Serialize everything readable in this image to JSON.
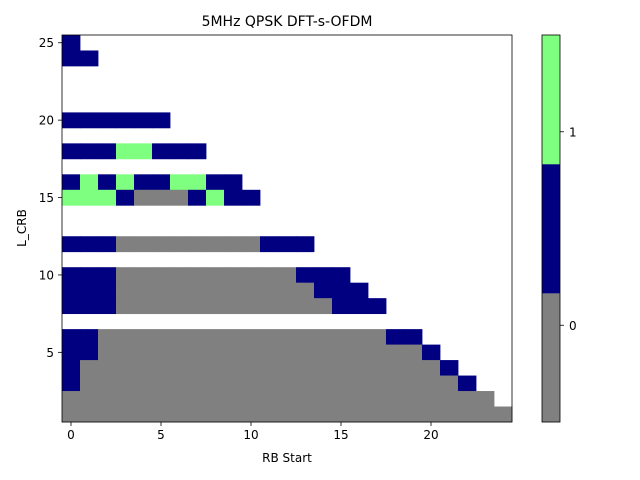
{
  "chart_data": {
    "type": "heatmap",
    "title": "5MHz QPSK DFT-s-OFDM",
    "xlabel": "RB Start",
    "ylabel": "L_CRB",
    "xlim": [
      -0.5,
      24.5
    ],
    "ylim": [
      0.5,
      25.5
    ],
    "x_ticks": [
      0,
      5,
      10,
      15,
      20
    ],
    "y_ticks": [
      5,
      10,
      15,
      20,
      25
    ],
    "colorbar": {
      "ticks": [
        {
          "value": 0,
          "label": "0"
        },
        {
          "value": 1,
          "label": "1"
        }
      ],
      "levels": [
        {
          "name": "gray",
          "color": "#808080"
        },
        {
          "name": "navy",
          "color": "#000080"
        },
        {
          "name": "light-green",
          "color": "#7fff7f"
        }
      ]
    },
    "colors": {
      "0": "#808080",
      "1": "#000080",
      "2": "#7fff7f"
    },
    "legend": "0 = gray, 1 = navy, 2 = light green",
    "rows": [
      {
        "L": 25,
        "cells": [
          [
            0,
            1
          ]
        ]
      },
      {
        "L": 24,
        "cells": [
          [
            0,
            1
          ],
          [
            1,
            1
          ]
        ]
      },
      {
        "L": 20,
        "cells": [
          [
            0,
            1
          ],
          [
            1,
            1
          ],
          [
            2,
            1
          ],
          [
            3,
            1
          ],
          [
            4,
            1
          ],
          [
            5,
            1
          ]
        ]
      },
      {
        "L": 18,
        "cells": [
          [
            0,
            1
          ],
          [
            1,
            1
          ],
          [
            2,
            1
          ],
          [
            3,
            2
          ],
          [
            4,
            2
          ],
          [
            5,
            1
          ],
          [
            6,
            1
          ],
          [
            7,
            1
          ]
        ]
      },
      {
        "L": 16,
        "cells": [
          [
            0,
            1
          ],
          [
            1,
            2
          ],
          [
            2,
            1
          ],
          [
            3,
            2
          ],
          [
            4,
            1
          ],
          [
            5,
            1
          ],
          [
            6,
            2
          ],
          [
            7,
            2
          ],
          [
            8,
            1
          ],
          [
            9,
            1
          ]
        ]
      },
      {
        "L": 15,
        "cells": [
          [
            0,
            2
          ],
          [
            1,
            2
          ],
          [
            2,
            2
          ],
          [
            3,
            1
          ],
          [
            4,
            0
          ],
          [
            5,
            0
          ],
          [
            6,
            0
          ],
          [
            7,
            1
          ],
          [
            8,
            2
          ],
          [
            9,
            1
          ],
          [
            10,
            1
          ]
        ]
      },
      {
        "L": 12,
        "cells": [
          [
            0,
            1
          ],
          [
            1,
            1
          ],
          [
            2,
            1
          ],
          [
            3,
            0
          ],
          [
            4,
            0
          ],
          [
            5,
            0
          ],
          [
            6,
            0
          ],
          [
            7,
            0
          ],
          [
            8,
            0
          ],
          [
            9,
            0
          ],
          [
            10,
            0
          ],
          [
            11,
            1
          ],
          [
            12,
            1
          ],
          [
            13,
            1
          ]
        ]
      },
      {
        "L": 10,
        "cells": [
          [
            0,
            1
          ],
          [
            1,
            1
          ],
          [
            2,
            1
          ],
          [
            3,
            0
          ],
          [
            4,
            0
          ],
          [
            5,
            0
          ],
          [
            6,
            0
          ],
          [
            7,
            0
          ],
          [
            8,
            0
          ],
          [
            9,
            0
          ],
          [
            10,
            0
          ],
          [
            11,
            0
          ],
          [
            12,
            0
          ],
          [
            13,
            1
          ],
          [
            14,
            1
          ],
          [
            15,
            1
          ]
        ]
      },
      {
        "L": 9,
        "cells": [
          [
            0,
            1
          ],
          [
            1,
            1
          ],
          [
            2,
            1
          ],
          [
            3,
            0
          ],
          [
            4,
            0
          ],
          [
            5,
            0
          ],
          [
            6,
            0
          ],
          [
            7,
            0
          ],
          [
            8,
            0
          ],
          [
            9,
            0
          ],
          [
            10,
            0
          ],
          [
            11,
            0
          ],
          [
            12,
            0
          ],
          [
            13,
            0
          ],
          [
            14,
            1
          ],
          [
            15,
            1
          ],
          [
            16,
            1
          ]
        ]
      },
      {
        "L": 8,
        "cells": [
          [
            0,
            1
          ],
          [
            1,
            1
          ],
          [
            2,
            1
          ],
          [
            3,
            0
          ],
          [
            4,
            0
          ],
          [
            5,
            0
          ],
          [
            6,
            0
          ],
          [
            7,
            0
          ],
          [
            8,
            0
          ],
          [
            9,
            0
          ],
          [
            10,
            0
          ],
          [
            11,
            0
          ],
          [
            12,
            0
          ],
          [
            13,
            0
          ],
          [
            14,
            0
          ],
          [
            15,
            1
          ],
          [
            16,
            1
          ],
          [
            17,
            1
          ]
        ]
      },
      {
        "L": 6,
        "cells": [
          [
            0,
            1
          ],
          [
            1,
            1
          ],
          [
            2,
            0
          ],
          [
            3,
            0
          ],
          [
            4,
            0
          ],
          [
            5,
            0
          ],
          [
            6,
            0
          ],
          [
            7,
            0
          ],
          [
            8,
            0
          ],
          [
            9,
            0
          ],
          [
            10,
            0
          ],
          [
            11,
            0
          ],
          [
            12,
            0
          ],
          [
            13,
            0
          ],
          [
            14,
            0
          ],
          [
            15,
            0
          ],
          [
            16,
            0
          ],
          [
            17,
            0
          ],
          [
            18,
            1
          ],
          [
            19,
            1
          ]
        ]
      },
      {
        "L": 5,
        "cells": [
          [
            0,
            1
          ],
          [
            1,
            1
          ],
          [
            2,
            0
          ],
          [
            3,
            0
          ],
          [
            4,
            0
          ],
          [
            5,
            0
          ],
          [
            6,
            0
          ],
          [
            7,
            0
          ],
          [
            8,
            0
          ],
          [
            9,
            0
          ],
          [
            10,
            0
          ],
          [
            11,
            0
          ],
          [
            12,
            0
          ],
          [
            13,
            0
          ],
          [
            14,
            0
          ],
          [
            15,
            0
          ],
          [
            16,
            0
          ],
          [
            17,
            0
          ],
          [
            18,
            0
          ],
          [
            19,
            0
          ],
          [
            20,
            1
          ]
        ]
      },
      {
        "L": 4,
        "cells": [
          [
            0,
            1
          ],
          [
            1,
            0
          ],
          [
            2,
            0
          ],
          [
            3,
            0
          ],
          [
            4,
            0
          ],
          [
            5,
            0
          ],
          [
            6,
            0
          ],
          [
            7,
            0
          ],
          [
            8,
            0
          ],
          [
            9,
            0
          ],
          [
            10,
            0
          ],
          [
            11,
            0
          ],
          [
            12,
            0
          ],
          [
            13,
            0
          ],
          [
            14,
            0
          ],
          [
            15,
            0
          ],
          [
            16,
            0
          ],
          [
            17,
            0
          ],
          [
            18,
            0
          ],
          [
            19,
            0
          ],
          [
            20,
            0
          ],
          [
            21,
            1
          ]
        ]
      },
      {
        "L": 3,
        "cells": [
          [
            0,
            1
          ],
          [
            1,
            0
          ],
          [
            2,
            0
          ],
          [
            3,
            0
          ],
          [
            4,
            0
          ],
          [
            5,
            0
          ],
          [
            6,
            0
          ],
          [
            7,
            0
          ],
          [
            8,
            0
          ],
          [
            9,
            0
          ],
          [
            10,
            0
          ],
          [
            11,
            0
          ],
          [
            12,
            0
          ],
          [
            13,
            0
          ],
          [
            14,
            0
          ],
          [
            15,
            0
          ],
          [
            16,
            0
          ],
          [
            17,
            0
          ],
          [
            18,
            0
          ],
          [
            19,
            0
          ],
          [
            20,
            0
          ],
          [
            21,
            0
          ],
          [
            22,
            1
          ]
        ]
      },
      {
        "L": 2,
        "cells": [
          [
            0,
            0
          ],
          [
            1,
            0
          ],
          [
            2,
            0
          ],
          [
            3,
            0
          ],
          [
            4,
            0
          ],
          [
            5,
            0
          ],
          [
            6,
            0
          ],
          [
            7,
            0
          ],
          [
            8,
            0
          ],
          [
            9,
            0
          ],
          [
            10,
            0
          ],
          [
            11,
            0
          ],
          [
            12,
            0
          ],
          [
            13,
            0
          ],
          [
            14,
            0
          ],
          [
            15,
            0
          ],
          [
            16,
            0
          ],
          [
            17,
            0
          ],
          [
            18,
            0
          ],
          [
            19,
            0
          ],
          [
            20,
            0
          ],
          [
            21,
            0
          ],
          [
            22,
            0
          ],
          [
            23,
            0
          ]
        ]
      },
      {
        "L": 1,
        "cells": [
          [
            0,
            0
          ],
          [
            1,
            0
          ],
          [
            2,
            0
          ],
          [
            3,
            0
          ],
          [
            4,
            0
          ],
          [
            5,
            0
          ],
          [
            6,
            0
          ],
          [
            7,
            0
          ],
          [
            8,
            0
          ],
          [
            9,
            0
          ],
          [
            10,
            0
          ],
          [
            11,
            0
          ],
          [
            12,
            0
          ],
          [
            13,
            0
          ],
          [
            14,
            0
          ],
          [
            15,
            0
          ],
          [
            16,
            0
          ],
          [
            17,
            0
          ],
          [
            18,
            0
          ],
          [
            19,
            0
          ],
          [
            20,
            0
          ],
          [
            21,
            0
          ],
          [
            22,
            0
          ],
          [
            23,
            0
          ],
          [
            24,
            0
          ]
        ]
      }
    ]
  }
}
